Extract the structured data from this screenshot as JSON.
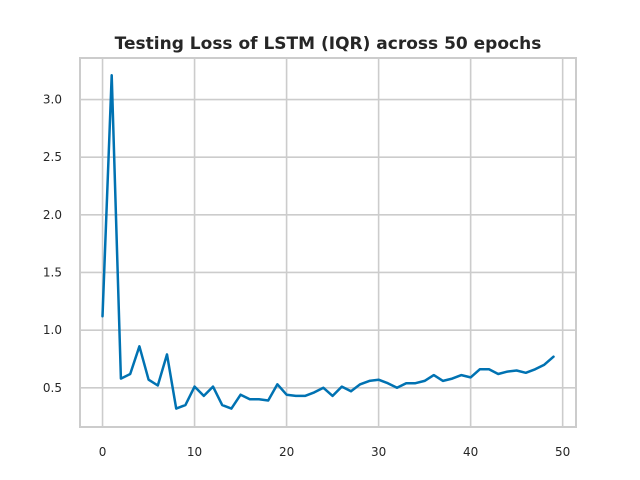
{
  "chart_data": {
    "type": "line",
    "title": "Testing Loss of LSTM (IQR) across 50 epochs",
    "xlabel": "",
    "ylabel": "",
    "xlim": [
      -2.45,
      51.45
    ],
    "ylim": [
      0.16,
      3.36
    ],
    "x_ticks": [
      0,
      10,
      20,
      30,
      40,
      50
    ],
    "x_tick_labels": [
      "0",
      "10",
      "20",
      "30",
      "40",
      "50"
    ],
    "y_ticks": [
      0.5,
      1.0,
      1.5,
      2.0,
      2.5,
      3.0
    ],
    "y_tick_labels": [
      "0.5",
      "1.0",
      "1.5",
      "2.0",
      "2.5",
      "3.0"
    ],
    "grid": true,
    "series_color": "#0072b2",
    "series": [
      {
        "x": [
          0,
          1,
          2,
          3,
          4,
          5,
          6,
          7,
          8,
          9,
          10,
          11,
          12,
          13,
          14,
          15,
          16,
          17,
          18,
          19,
          20,
          21,
          22,
          23,
          24,
          25,
          26,
          27,
          28,
          29,
          30,
          31,
          32,
          33,
          34,
          35,
          36,
          37,
          38,
          39,
          40,
          41,
          42,
          43,
          44,
          45,
          46,
          47,
          48,
          49
        ],
        "values": [
          1.12,
          3.21,
          0.58,
          0.62,
          0.86,
          0.57,
          0.52,
          0.79,
          0.32,
          0.35,
          0.51,
          0.43,
          0.51,
          0.35,
          0.32,
          0.44,
          0.4,
          0.4,
          0.39,
          0.53,
          0.44,
          0.43,
          0.43,
          0.46,
          0.5,
          0.43,
          0.51,
          0.47,
          0.53,
          0.56,
          0.57,
          0.54,
          0.5,
          0.54,
          0.54,
          0.56,
          0.61,
          0.56,
          0.58,
          0.61,
          0.59,
          0.66,
          0.66,
          0.62,
          0.64,
          0.65,
          0.63,
          0.66,
          0.7,
          0.77
        ]
      }
    ]
  }
}
